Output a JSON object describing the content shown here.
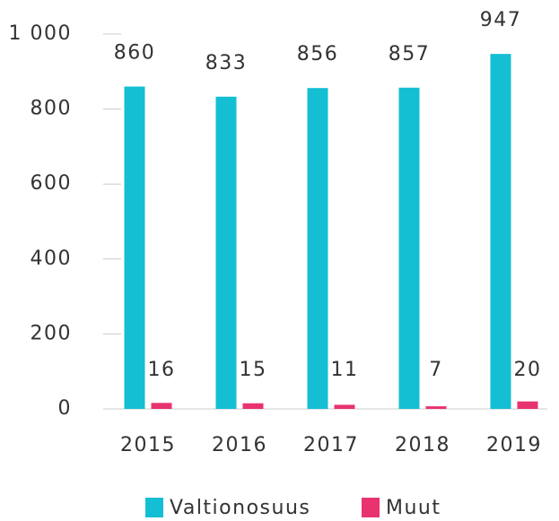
{
  "chart_data": {
    "type": "bar",
    "categories": [
      "2015",
      "2016",
      "2017",
      "2018",
      "2019"
    ],
    "series": [
      {
        "name": "Valtionosuus",
        "color": "#14bed3",
        "values": [
          860,
          833,
          856,
          857,
          947
        ]
      },
      {
        "name": "Muut",
        "color": "#e8336e",
        "values": [
          16,
          15,
          11,
          7,
          20
        ]
      }
    ],
    "ylim": [
      0,
      1000
    ],
    "yticks": [
      0,
      200,
      400,
      600,
      800,
      {
        "value": 1000,
        "label": "1 000"
      }
    ],
    "legend": "bottom"
  }
}
